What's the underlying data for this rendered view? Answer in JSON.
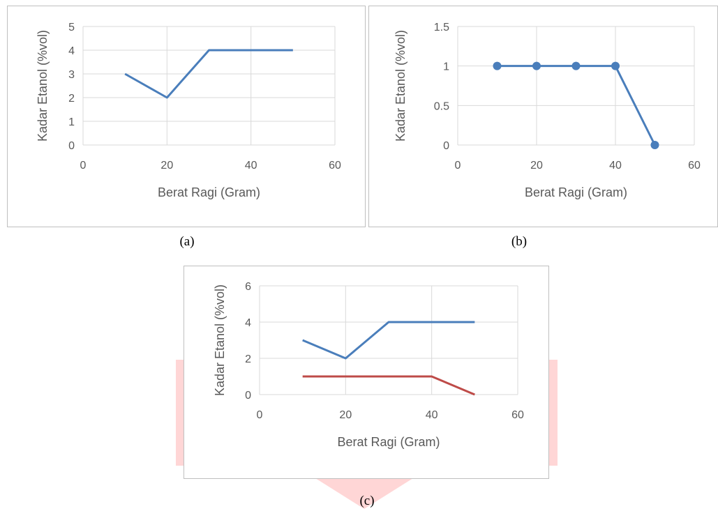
{
  "figure": {
    "captions": [
      "(a)",
      "(b)",
      "(c)"
    ]
  },
  "colors": {
    "series_blue": "#4a7ebb",
    "series_red": "#be4b48",
    "grid": "#d9d9d9",
    "axis_text": "#595959"
  },
  "chart_data": [
    {
      "type": "line",
      "title": "",
      "xlabel": "Berat Ragi (Gram)",
      "ylabel": "Kadar Etanol (%vol)",
      "xlim": [
        0,
        60
      ],
      "ylim": [
        0,
        5
      ],
      "xticks": [
        0,
        20,
        40,
        60
      ],
      "yticks": [
        0,
        1,
        2,
        3,
        4,
        5
      ],
      "xtick_labels": [
        "0",
        "20",
        "40",
        "60"
      ],
      "ytick_labels": [
        "0",
        "1",
        "2",
        "3",
        "4",
        "5"
      ],
      "grid": true,
      "legend": "none",
      "series": [
        {
          "x": [
            10,
            20,
            30,
            40,
            50
          ],
          "values": [
            3,
            2,
            4,
            4,
            4
          ],
          "color": "#4a7ebb",
          "markers": false
        }
      ]
    },
    {
      "type": "line",
      "title": "",
      "xlabel": "Berat Ragi (Gram)",
      "ylabel": "Kadar Etanol (%vol)",
      "xlim": [
        0,
        60
      ],
      "ylim": [
        0,
        1.5
      ],
      "xticks": [
        0,
        20,
        40,
        60
      ],
      "yticks": [
        0,
        0.5,
        1,
        1.5
      ],
      "xtick_labels": [
        "0",
        "20",
        "40",
        "60"
      ],
      "ytick_labels": [
        "0",
        "0.5",
        "1",
        "1.5"
      ],
      "grid": true,
      "legend": "none",
      "series": [
        {
          "x": [
            10,
            20,
            30,
            40,
            50
          ],
          "values": [
            1,
            1,
            1,
            1,
            0
          ],
          "color": "#4a7ebb",
          "markers": true
        }
      ]
    },
    {
      "type": "line",
      "title": "",
      "xlabel": "Berat Ragi (Gram)",
      "ylabel": "Kadar Etanol (%vol)",
      "xlim": [
        0,
        60
      ],
      "ylim": [
        0,
        6
      ],
      "xticks": [
        0,
        20,
        40,
        60
      ],
      "yticks": [
        0,
        2,
        4,
        6
      ],
      "xtick_labels": [
        "0",
        "20",
        "40",
        "60"
      ],
      "ytick_labels": [
        "0",
        "2",
        "4",
        "6"
      ],
      "grid": true,
      "legend": "none",
      "series": [
        {
          "x": [
            10,
            20,
            30,
            40,
            50
          ],
          "values": [
            3,
            2,
            4,
            4,
            4
          ],
          "color": "#4a7ebb",
          "markers": false
        },
        {
          "x": [
            10,
            20,
            30,
            40,
            50
          ],
          "values": [
            1,
            1,
            1,
            1,
            0
          ],
          "color": "#be4b48",
          "markers": false
        }
      ]
    }
  ]
}
